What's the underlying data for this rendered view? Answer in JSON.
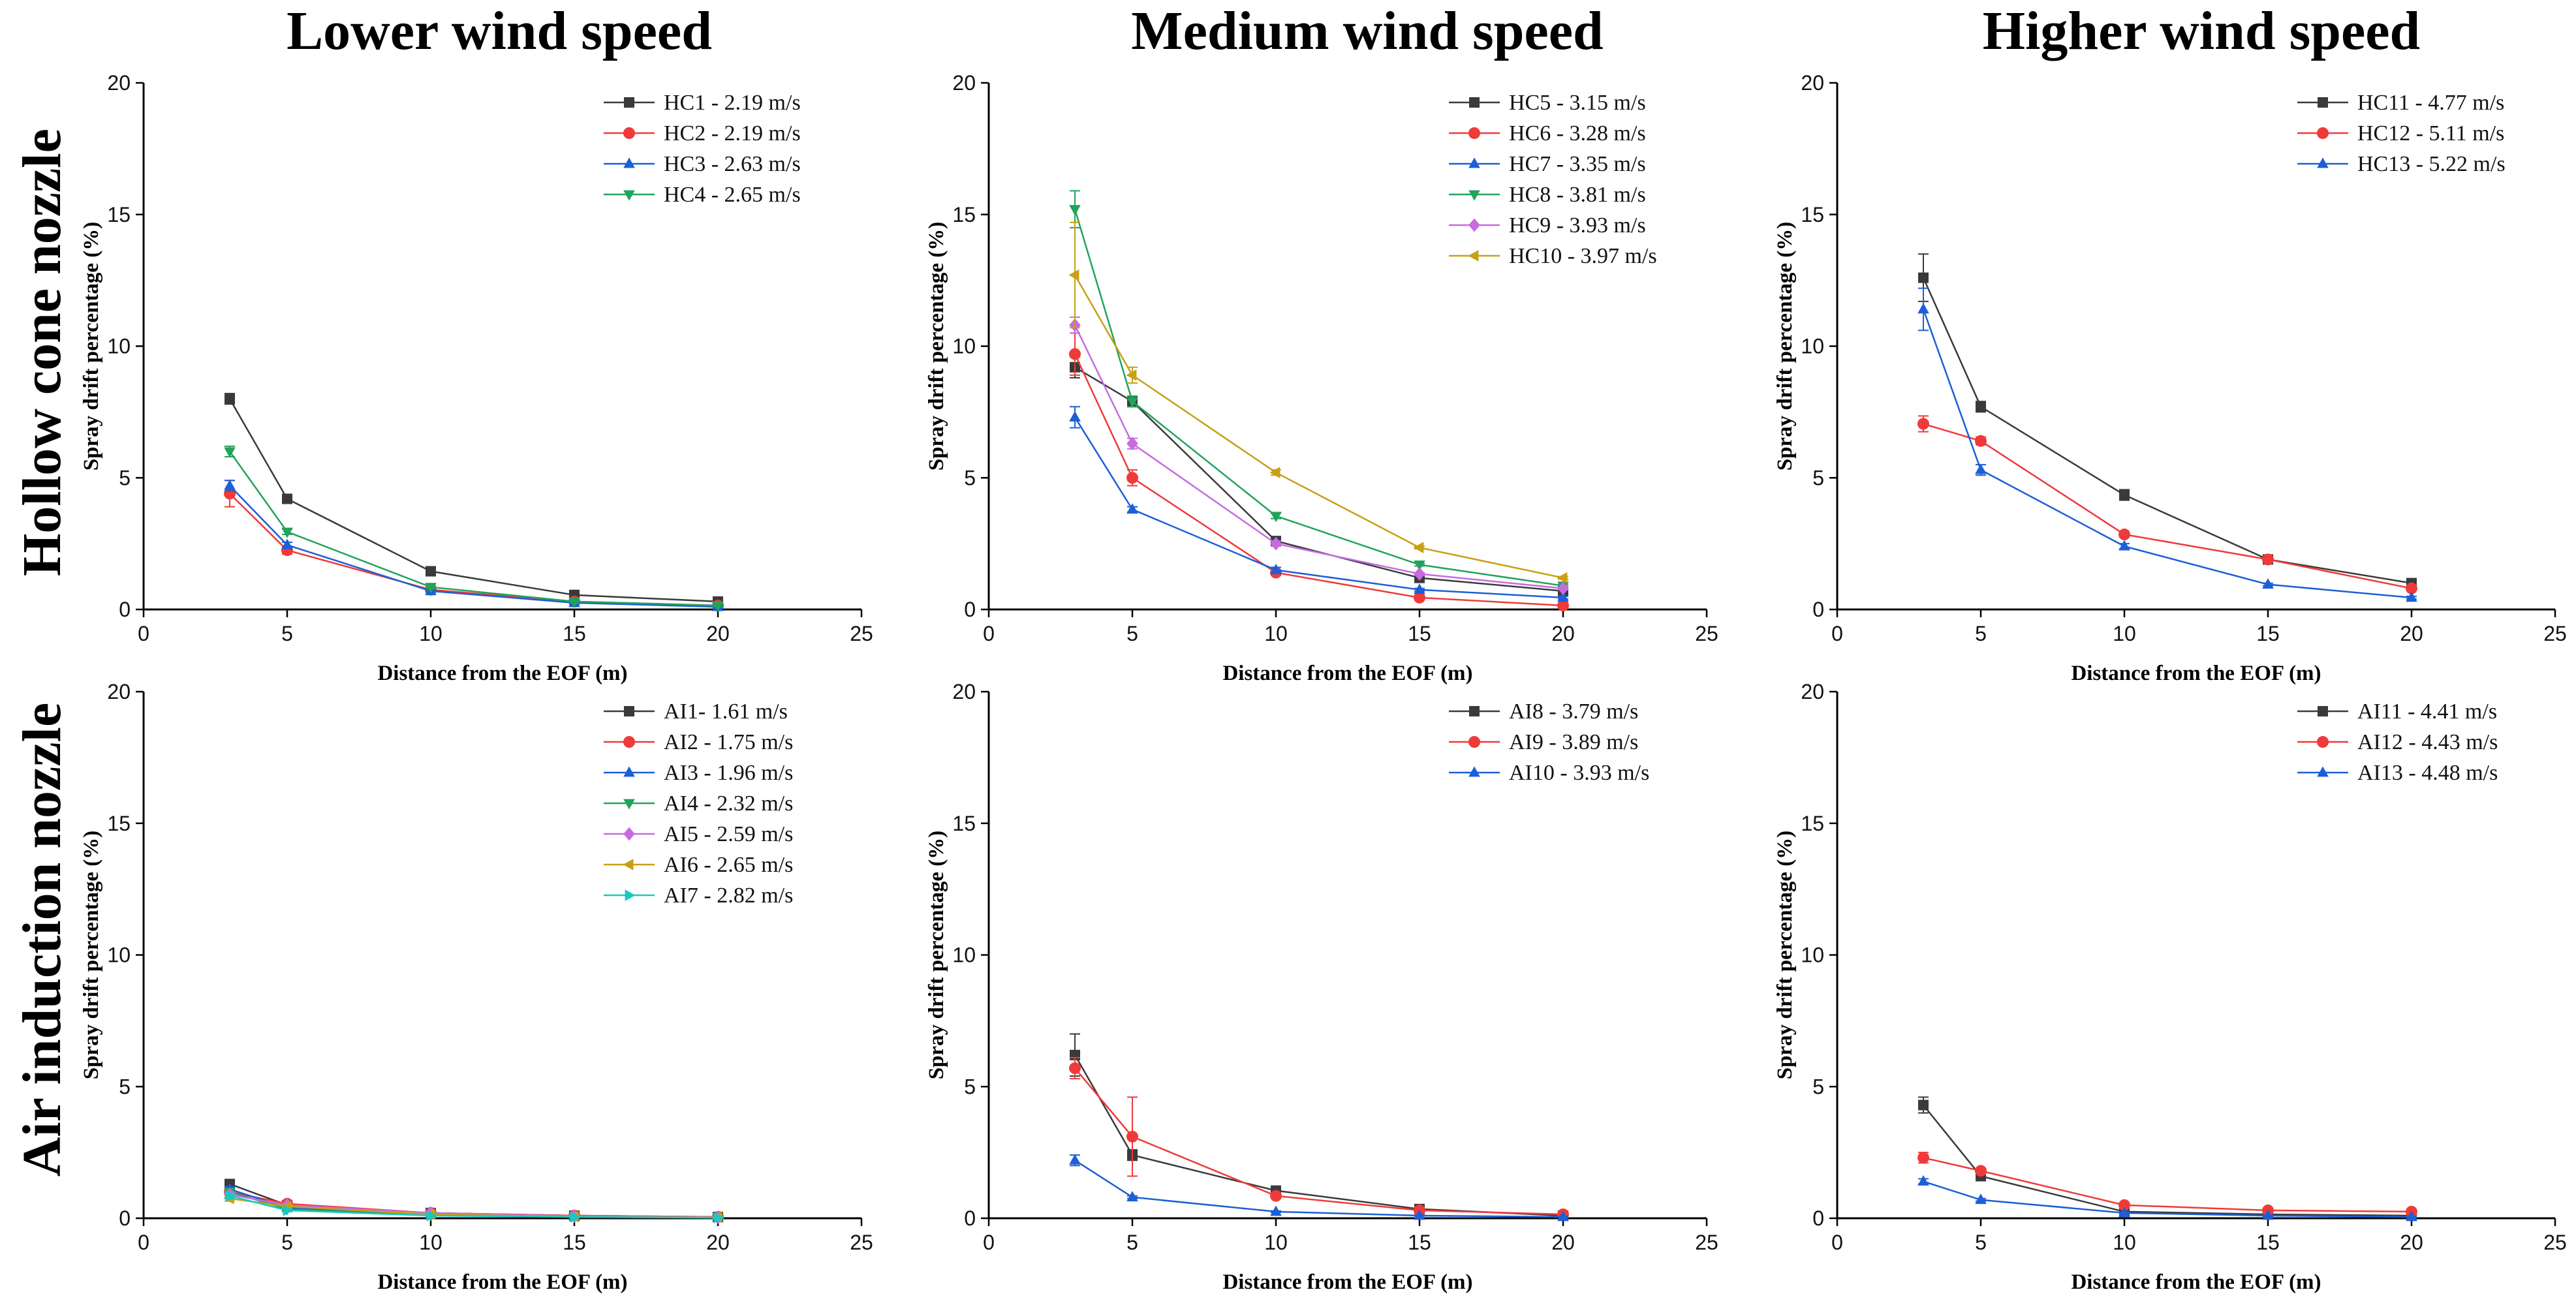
{
  "figure": {
    "column_titles": [
      "Lower wind speed",
      "Medium wind speed",
      "Higher wind speed"
    ],
    "row_titles": [
      "Hollow cone nozzle",
      "Air induction nozzle"
    ]
  },
  "chart_data": [
    {
      "type": "line",
      "panel": "hollow-cone-lower",
      "title": "",
      "xlabel": "Distance from the EOF (m)",
      "ylabel": "Spray drift percentage (%)",
      "xlim": [
        0,
        25
      ],
      "ylim": [
        0,
        20
      ],
      "xticks": [
        0,
        5,
        10,
        15,
        20,
        25
      ],
      "yticks": [
        0,
        5,
        10,
        15,
        20
      ],
      "x": [
        3,
        5,
        10,
        15,
        20
      ],
      "series": [
        {
          "name": "HC1 - 2.19 m/s",
          "color": "#3a3a3a",
          "marker": "square",
          "values": [
            8.0,
            4.2,
            1.45,
            0.55,
            0.3
          ],
          "errors": [
            0.2,
            0.1,
            0.05,
            0.05,
            0.05
          ]
        },
        {
          "name": "HC2 - 2.19 m/s",
          "color": "#f03a3a",
          "marker": "circle",
          "values": [
            4.4,
            2.25,
            0.75,
            0.3,
            0.15
          ],
          "errors": [
            0.5,
            0.15,
            0.05,
            0.05,
            0.05
          ]
        },
        {
          "name": "HC3 - 2.63 m/s",
          "color": "#1c5fd6",
          "marker": "triangle-up",
          "values": [
            4.7,
            2.45,
            0.7,
            0.25,
            0.1
          ],
          "errors": [
            0.2,
            0.1,
            0.05,
            0.05,
            0.05
          ]
        },
        {
          "name": "HC4 - 2.65 m/s",
          "color": "#21a35a",
          "marker": "triangle-down",
          "values": [
            6.0,
            2.95,
            0.85,
            0.3,
            0.15
          ],
          "errors": [
            0.2,
            0.1,
            0.05,
            0.05,
            0.05
          ]
        }
      ]
    },
    {
      "type": "line",
      "panel": "hollow-cone-medium",
      "title": "",
      "xlabel": "Distance from the EOF (m)",
      "ylabel": "Spray drift percentage (%)",
      "xlim": [
        0,
        25
      ],
      "ylim": [
        0,
        20
      ],
      "xticks": [
        0,
        5,
        10,
        15,
        20,
        25
      ],
      "yticks": [
        0,
        5,
        10,
        15,
        20
      ],
      "x": [
        3,
        5,
        10,
        15,
        20
      ],
      "series": [
        {
          "name": "HC5 - 3.15 m/s",
          "color": "#3a3a3a",
          "marker": "square",
          "values": [
            9.2,
            7.9,
            2.6,
            1.2,
            0.7
          ],
          "errors": [
            0.4,
            0.2,
            0.1,
            0.05,
            0.05
          ]
        },
        {
          "name": "HC6 - 3.28 m/s",
          "color": "#f03a3a",
          "marker": "circle",
          "values": [
            9.7,
            5.0,
            1.4,
            0.45,
            0.15
          ],
          "errors": [
            0.8,
            0.3,
            0.1,
            0.05,
            0.05
          ]
        },
        {
          "name": "HC7 - 3.35 m/s",
          "color": "#1c5fd6",
          "marker": "triangle-up",
          "values": [
            7.3,
            3.8,
            1.5,
            0.75,
            0.45
          ],
          "errors": [
            0.4,
            0.1,
            0.1,
            0.05,
            0.05
          ]
        },
        {
          "name": "HC8 - 3.81 m/s",
          "color": "#21a35a",
          "marker": "triangle-down",
          "values": [
            15.2,
            7.9,
            3.55,
            1.7,
            0.9
          ],
          "errors": [
            0.7,
            0.2,
            0.1,
            0.05,
            0.05
          ]
        },
        {
          "name": "HC9 - 3.93 m/s",
          "color": "#c76be0",
          "marker": "diamond",
          "values": [
            10.8,
            6.3,
            2.5,
            1.35,
            0.8
          ],
          "errors": [
            0.3,
            0.2,
            0.1,
            0.05,
            0.05
          ]
        },
        {
          "name": "HC10 - 3.97 m/s",
          "color": "#c9a014",
          "marker": "triangle-left",
          "values": [
            12.7,
            8.9,
            5.2,
            2.35,
            1.2
          ],
          "errors": [
            2.0,
            0.3,
            0.1,
            0.05,
            0.05
          ]
        }
      ]
    },
    {
      "type": "line",
      "panel": "hollow-cone-higher",
      "title": "",
      "xlabel": "Distance from the EOF (m)",
      "ylabel": "Spray drift percentage (%)",
      "xlim": [
        0,
        25
      ],
      "ylim": [
        0,
        20
      ],
      "xticks": [
        0,
        5,
        10,
        15,
        20,
        25
      ],
      "yticks": [
        0,
        5,
        10,
        15,
        20
      ],
      "x": [
        3,
        5,
        10,
        15,
        20
      ],
      "series": [
        {
          "name": "HC11 - 4.77 m/s",
          "color": "#3a3a3a",
          "marker": "square",
          "values": [
            12.6,
            7.7,
            4.35,
            1.9,
            1.0
          ],
          "errors": [
            0.9,
            0.2,
            0.2,
            0.05,
            0.05
          ]
        },
        {
          "name": "HC12 - 5.11 m/s",
          "color": "#f03a3a",
          "marker": "circle",
          "values": [
            7.05,
            6.4,
            2.85,
            1.9,
            0.8
          ],
          "errors": [
            0.3,
            0.15,
            0.1,
            0.05,
            0.05
          ]
        },
        {
          "name": "HC13 - 5.22 m/s",
          "color": "#1c5fd6",
          "marker": "triangle-up",
          "values": [
            11.4,
            5.3,
            2.4,
            0.95,
            0.45
          ],
          "errors": [
            0.8,
            0.2,
            0.1,
            0.05,
            0.05
          ]
        }
      ]
    },
    {
      "type": "line",
      "panel": "air-induction-lower",
      "title": "",
      "xlabel": "Distance from the EOF (m)",
      "ylabel": "Spray drift percentage (%)",
      "xlim": [
        0,
        25
      ],
      "ylim": [
        0,
        20
      ],
      "xticks": [
        0,
        5,
        10,
        15,
        20,
        25
      ],
      "yticks": [
        0,
        5,
        10,
        15,
        20
      ],
      "x": [
        3,
        5,
        10,
        15,
        20
      ],
      "series": [
        {
          "name": "AI1- 1.61 m/s",
          "color": "#3a3a3a",
          "marker": "square",
          "values": [
            1.3,
            0.5,
            0.2,
            0.1,
            0.05
          ],
          "errors": [
            0.1,
            0.05,
            0.03,
            0.02,
            0.02
          ]
        },
        {
          "name": "AI2 - 1.75 m/s",
          "color": "#f03a3a",
          "marker": "circle",
          "values": [
            1.0,
            0.55,
            0.2,
            0.1,
            0.05
          ],
          "errors": [
            0.1,
            0.05,
            0.03,
            0.02,
            0.02
          ]
        },
        {
          "name": "AI3 - 1.96 m/s",
          "color": "#1c5fd6",
          "marker": "triangle-up",
          "values": [
            1.1,
            0.4,
            0.15,
            0.05,
            0.03
          ],
          "errors": [
            0.1,
            0.05,
            0.03,
            0.02,
            0.02
          ]
        },
        {
          "name": "AI4 - 2.32 m/s",
          "color": "#21a35a",
          "marker": "triangle-down",
          "values": [
            1.0,
            0.35,
            0.12,
            0.05,
            0.03
          ],
          "errors": [
            0.1,
            0.05,
            0.03,
            0.02,
            0.02
          ]
        },
        {
          "name": "AI5 - 2.59 m/s",
          "color": "#c76be0",
          "marker": "diamond",
          "values": [
            0.9,
            0.5,
            0.2,
            0.08,
            0.04
          ],
          "errors": [
            0.1,
            0.05,
            0.03,
            0.02,
            0.02
          ]
        },
        {
          "name": "AI6 - 2.65 m/s",
          "color": "#c9a014",
          "marker": "triangle-left",
          "values": [
            0.75,
            0.45,
            0.15,
            0.06,
            0.03
          ],
          "errors": [
            0.1,
            0.05,
            0.03,
            0.02,
            0.02
          ]
        },
        {
          "name": "AI7 - 2.82 m/s",
          "color": "#17c9c0",
          "marker": "triangle-right",
          "values": [
            0.85,
            0.3,
            0.1,
            0.05,
            0.02
          ],
          "errors": [
            0.1,
            0.05,
            0.03,
            0.02,
            0.02
          ]
        }
      ]
    },
    {
      "type": "line",
      "panel": "air-induction-medium",
      "title": "",
      "xlabel": "Distance from the EOF (m)",
      "ylabel": "Spray drift percentage (%)",
      "xlim": [
        0,
        25
      ],
      "ylim": [
        0,
        20
      ],
      "xticks": [
        0,
        5,
        10,
        15,
        20,
        25
      ],
      "yticks": [
        0,
        5,
        10,
        15,
        20
      ],
      "x": [
        3,
        5,
        10,
        15,
        20
      ],
      "series": [
        {
          "name": "AI8 - 3.79 m/s",
          "color": "#3a3a3a",
          "marker": "square",
          "values": [
            6.2,
            2.4,
            1.05,
            0.35,
            0.1
          ],
          "errors": [
            0.8,
            0.2,
            0.05,
            0.05,
            0.03
          ]
        },
        {
          "name": "AI9 - 3.89 m/s",
          "color": "#f03a3a",
          "marker": "circle",
          "values": [
            5.7,
            3.1,
            0.85,
            0.3,
            0.15
          ],
          "errors": [
            0.4,
            1.5,
            0.05,
            0.05,
            0.03
          ]
        },
        {
          "name": "AI10 - 3.93 m/s",
          "color": "#1c5fd6",
          "marker": "triangle-up",
          "values": [
            2.2,
            0.8,
            0.25,
            0.1,
            0.05
          ],
          "errors": [
            0.2,
            0.05,
            0.03,
            0.02,
            0.02
          ]
        }
      ]
    },
    {
      "type": "line",
      "panel": "air-induction-higher",
      "title": "",
      "xlabel": "Distance from the EOF (m)",
      "ylabel": "Spray drift percentage (%)",
      "xlim": [
        0,
        25
      ],
      "ylim": [
        0,
        20
      ],
      "xticks": [
        0,
        5,
        10,
        15,
        20,
        25
      ],
      "yticks": [
        0,
        5,
        10,
        15,
        20
      ],
      "x": [
        3,
        5,
        10,
        15,
        20
      ],
      "series": [
        {
          "name": "AI11 - 4.41 m/s",
          "color": "#3a3a3a",
          "marker": "square",
          "values": [
            4.3,
            1.6,
            0.25,
            0.15,
            0.1
          ],
          "errors": [
            0.3,
            0.1,
            0.03,
            0.02,
            0.02
          ]
        },
        {
          "name": "AI12 - 4.43 m/s",
          "color": "#f03a3a",
          "marker": "circle",
          "values": [
            2.3,
            1.8,
            0.5,
            0.3,
            0.25
          ],
          "errors": [
            0.2,
            0.1,
            0.05,
            0.03,
            0.03
          ]
        },
        {
          "name": "AI13 - 4.48 m/s",
          "color": "#1c5fd6",
          "marker": "triangle-up",
          "values": [
            1.4,
            0.7,
            0.2,
            0.1,
            0.05
          ],
          "errors": [
            0.1,
            0.05,
            0.03,
            0.02,
            0.02
          ]
        }
      ]
    }
  ]
}
